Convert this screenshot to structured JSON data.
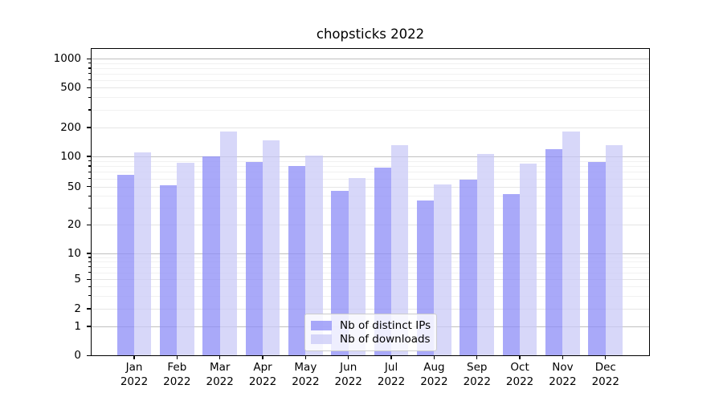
{
  "title": "chopsticks 2022",
  "chart_data": {
    "type": "bar",
    "title": "chopsticks 2022",
    "categories": [
      "Jan 2022",
      "Feb 2022",
      "Mar 2022",
      "Apr 2022",
      "May 2022",
      "Jun 2022",
      "Jul 2022",
      "Aug 2022",
      "Sep 2022",
      "Oct 2022",
      "Nov 2022",
      "Dec 2022"
    ],
    "series": [
      {
        "name": "Nb of distinct IPs",
        "color": "#a9a9f9",
        "values": [
          65,
          52,
          100,
          88,
          80,
          45,
          78,
          36,
          59,
          42,
          118,
          88
        ]
      },
      {
        "name": "Nb of downloads",
        "color": "#d7d7f9",
        "values": [
          110,
          87,
          180,
          148,
          102,
          61,
          131,
          53,
          105,
          85,
          182,
          131
        ]
      }
    ],
    "xlabel": "",
    "ylabel": "",
    "y_scale": "symlog",
    "y_ticks": [
      0,
      1,
      2,
      5,
      10,
      20,
      50,
      100,
      200,
      500,
      1000
    ],
    "ylim": [
      0,
      1000
    ],
    "grid": true,
    "legend_position": "lower center",
    "background": "#ffffff",
    "gridline_major_color": "#c0c0c0",
    "gridline_minor_color": "#f1f1f1"
  }
}
